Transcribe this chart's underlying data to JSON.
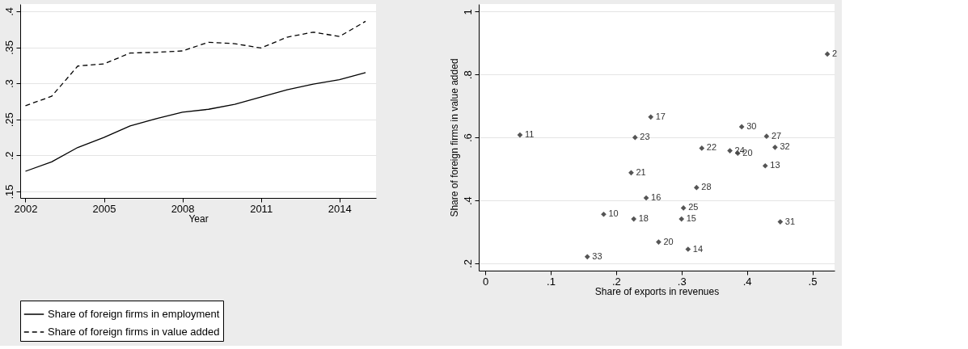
{
  "chart_data": [
    {
      "type": "line",
      "xlabel": "Year",
      "x": [
        2002,
        2003,
        2004,
        2005,
        2006,
        2007,
        2008,
        2009,
        2010,
        2011,
        2012,
        2013,
        2014,
        2015
      ],
      "series": [
        {
          "name": "Share of foreign firms in employment",
          "color": "#000000",
          "line_style": "solid",
          "values": [
            0.178,
            0.191,
            0.211,
            0.225,
            0.241,
            0.251,
            0.26,
            0.264,
            0.271,
            0.281,
            0.291,
            0.299,
            0.305,
            0.315
          ]
        },
        {
          "name": "Share of foreign firms in value added",
          "color": "#000000",
          "line_style": "dashed",
          "values": [
            0.269,
            0.282,
            0.324,
            0.327,
            0.342,
            0.343,
            0.345,
            0.357,
            0.355,
            0.349,
            0.364,
            0.371,
            0.365,
            0.386
          ]
        }
      ],
      "xlim": [
        2001.8,
        2015.4
      ],
      "ylim": [
        0.141,
        0.41
      ],
      "xticks": [
        2002,
        2005,
        2008,
        2011,
        2014
      ],
      "yticks": [
        {
          "value": 0.15,
          "label": ".15"
        },
        {
          "value": 0.2,
          "label": ".2"
        },
        {
          "value": 0.25,
          "label": ".25"
        },
        {
          "value": 0.3,
          "label": ".3"
        },
        {
          "value": 0.35,
          "label": ".35"
        },
        {
          "value": 0.4,
          "label": ".4"
        }
      ],
      "grid": "y",
      "legend": "bottom"
    },
    {
      "type": "scatter",
      "xlabel": "Share of exports in revenues",
      "ylabel": "Share of foreign firms in value added",
      "x": [
        0.523,
        0.253,
        0.053,
        0.229,
        0.392,
        0.43,
        0.443,
        0.331,
        0.374,
        0.386,
        0.428,
        0.223,
        0.323,
        0.246,
        0.303,
        0.181,
        0.227,
        0.3,
        0.451,
        0.265,
        0.31,
        0.156
      ],
      "series": [
        {
          "color": "#555555",
          "values": [
            0.865,
            0.665,
            0.608,
            0.6,
            0.634,
            0.604,
            0.569,
            0.566,
            0.558,
            0.55,
            0.51,
            0.488,
            0.441,
            0.408,
            0.376,
            0.356,
            0.341,
            0.341,
            0.332,
            0.268,
            0.245,
            0.221
          ]
        }
      ],
      "value_labels": [
        "2",
        "17",
        "11",
        "23",
        "30",
        "27",
        "32",
        "22",
        "24",
        "20",
        "13",
        "21",
        "28",
        "16",
        "25",
        "10",
        "18",
        "15",
        "31",
        "20",
        "14",
        "33"
      ],
      "marker": "diamond",
      "xlim": [
        -0.01,
        0.534
      ],
      "ylim": [
        0.177,
        1.024
      ],
      "xticks": [
        0,
        {
          "value": 0.1,
          "label": ".1"
        },
        {
          "value": 0.2,
          "label": ".2"
        },
        {
          "value": 0.3,
          "label": ".3"
        },
        {
          "value": 0.4,
          "label": ".4"
        },
        {
          "value": 0.5,
          "label": ".5"
        }
      ],
      "yticks": [
        {
          "value": 0.2,
          "label": ".2"
        },
        {
          "value": 0.4,
          "label": ".4"
        },
        {
          "value": 0.6,
          "label": ".6"
        },
        {
          "value": 0.8,
          "label": ".8"
        },
        1
      ],
      "grid": "y"
    }
  ]
}
